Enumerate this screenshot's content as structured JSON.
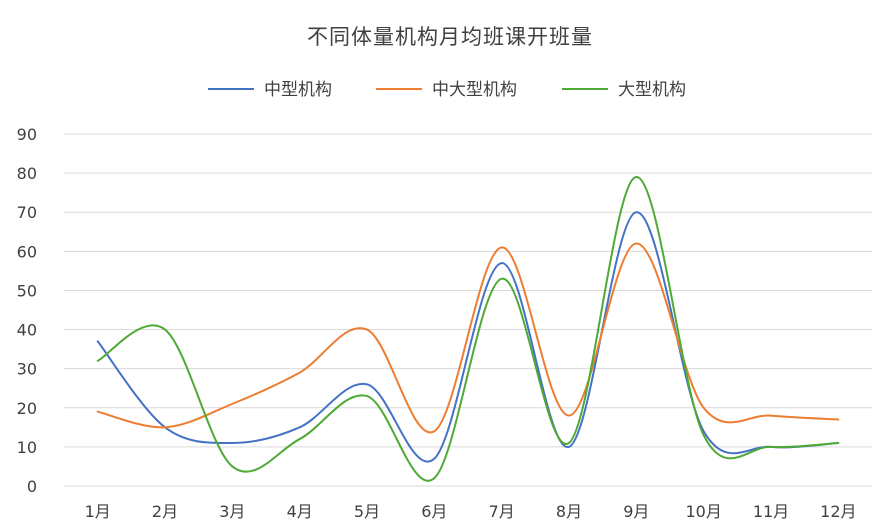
{
  "chart_data": {
    "type": "line",
    "title": "不同体量机构月均班课开班量",
    "categories": [
      "1月",
      "2月",
      "3月",
      "4月",
      "5月",
      "6月",
      "7月",
      "8月",
      "9月",
      "10月",
      "11月",
      "12月"
    ],
    "ylim": [
      0,
      90
    ],
    "yticks": [
      0,
      10,
      20,
      30,
      40,
      50,
      60,
      70,
      80,
      90
    ],
    "grid": true,
    "smooth": true,
    "legend_position": "top",
    "series": [
      {
        "name": "中型机构",
        "color": "#4472c4",
        "values": [
          37,
          15,
          11,
          15,
          26,
          7,
          57,
          10,
          70,
          14,
          10,
          11
        ]
      },
      {
        "name": "中大型机构",
        "color": "#ed7d31",
        "values": [
          19,
          15,
          21,
          29,
          40,
          14,
          61,
          18,
          62,
          20,
          18,
          17
        ]
      },
      {
        "name": "大型机构",
        "color": "#4eaa35",
        "values": [
          32,
          40,
          5,
          12,
          23,
          2,
          53,
          11,
          79,
          13,
          10,
          11
        ]
      }
    ]
  }
}
